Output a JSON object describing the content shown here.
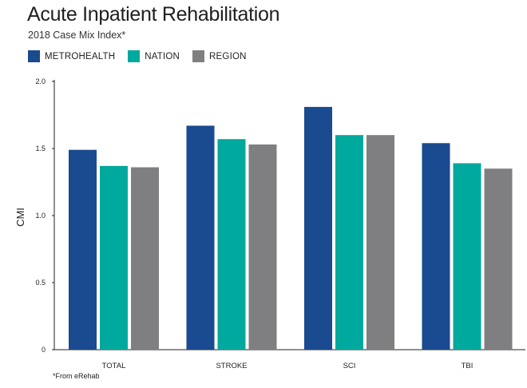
{
  "header": {
    "title": "Acute Inpatient Rehabilitation",
    "subtitle": "2018 Case Mix Index*"
  },
  "footnote": "*From eRehab",
  "colors": {
    "metrohealth": "#1a4a8f",
    "nation": "#00a99d",
    "region": "#7f7f82",
    "axis": "#222222"
  },
  "chart_data": {
    "type": "bar",
    "title": "Acute Inpatient Rehabilitation",
    "subtitle": "2018 Case Mix Index*",
    "xlabel": "",
    "ylabel": "CMI",
    "ylim": [
      0,
      2.0
    ],
    "yticks": [
      "0",
      "0.5",
      "1.0",
      "1.5",
      "2.0"
    ],
    "ytick_values": [
      0,
      0.5,
      1.0,
      1.5,
      2.0
    ],
    "categories": [
      "TOTAL",
      "STROKE",
      "SCI",
      "TBI"
    ],
    "series": [
      {
        "name": "METROHEALTH",
        "values": [
          1.49,
          1.67,
          1.81,
          1.54
        ]
      },
      {
        "name": "NATION",
        "values": [
          1.37,
          1.57,
          1.6,
          1.39
        ]
      },
      {
        "name": "REGION",
        "values": [
          1.36,
          1.53,
          1.6,
          1.35
        ]
      }
    ],
    "legend_position": "top-left",
    "grid": false
  }
}
